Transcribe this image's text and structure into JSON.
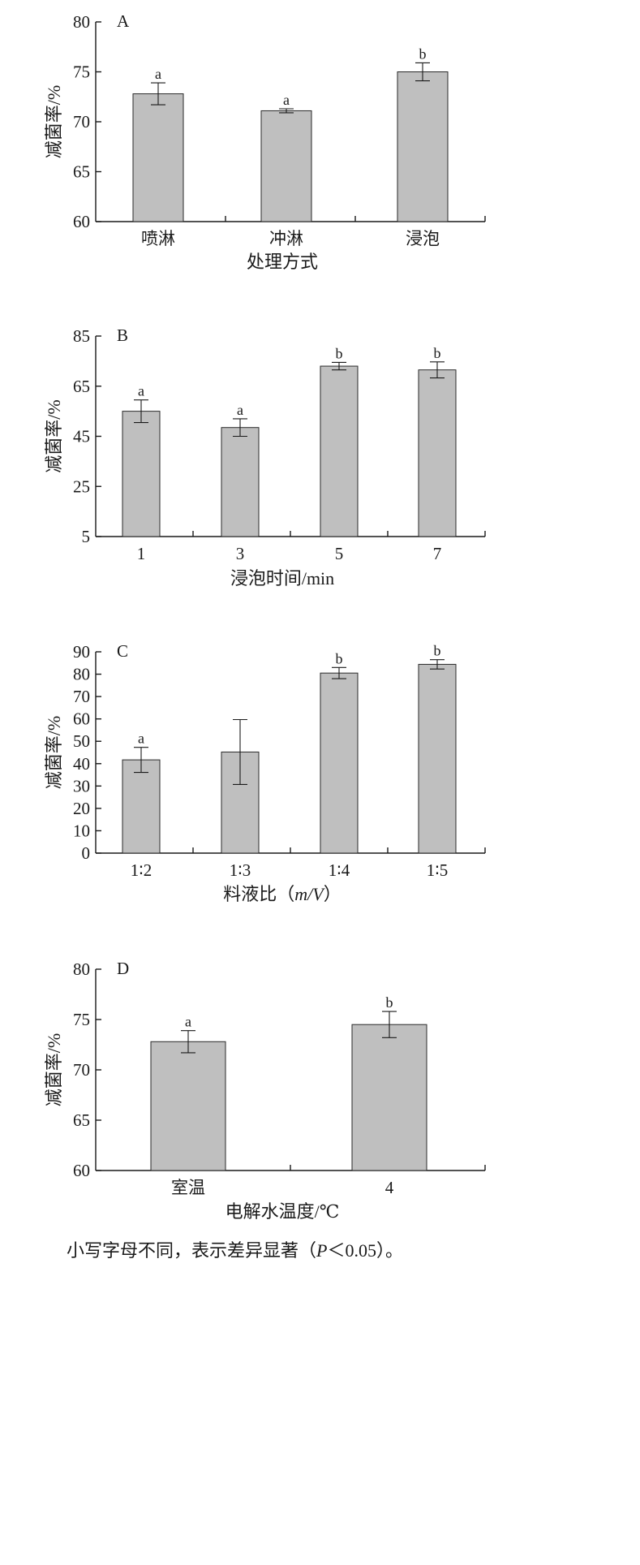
{
  "chart_data": [
    {
      "type": "bar",
      "panel": "A",
      "categories": [
        "喷淋",
        "冲淋",
        "浸泡"
      ],
      "values": [
        72.8,
        71.1,
        75.0
      ],
      "errors": [
        1.1,
        0.2,
        0.9
      ],
      "significance": [
        "a",
        "a",
        "b"
      ],
      "xlabel": "处理方式",
      "ylabel": "减菌率/%",
      "ylim": [
        60,
        80
      ],
      "yticks": [
        60,
        65,
        70,
        75,
        80
      ]
    },
    {
      "type": "bar",
      "panel": "B",
      "categories": [
        "1",
        "3",
        "5",
        "7"
      ],
      "values": [
        55,
        48.5,
        73,
        71.5
      ],
      "errors": [
        4.5,
        3.5,
        1.5,
        3.2
      ],
      "significance": [
        "a",
        "a",
        "b",
        "b"
      ],
      "xlabel": "浸泡时间/min",
      "ylabel": "减菌率/%",
      "ylim": [
        5,
        85
      ],
      "yticks": [
        5,
        25,
        45,
        65,
        85
      ]
    },
    {
      "type": "bar",
      "panel": "C",
      "categories": [
        "1∶2",
        "1∶3",
        "1∶4",
        "1∶5"
      ],
      "values": [
        41.7,
        45.2,
        80.5,
        84.4
      ],
      "errors": [
        5.6,
        14.5,
        2.5,
        2.1
      ],
      "significance": [
        "a",
        "",
        "b",
        "b"
      ],
      "xlabel": "料液比（m/V）",
      "ylabel": "减菌率/%",
      "ylim": [
        0,
        90
      ],
      "yticks": [
        0,
        10,
        20,
        30,
        40,
        50,
        60,
        70,
        80,
        90
      ]
    },
    {
      "type": "bar",
      "panel": "D",
      "categories": [
        "室温",
        "4"
      ],
      "values": [
        72.8,
        74.5
      ],
      "errors": [
        1.1,
        1.3
      ],
      "significance": [
        "a",
        "b"
      ],
      "xlabel": "电解水温度/℃",
      "ylabel": "减菌率/%",
      "ylim": [
        60,
        80
      ],
      "yticks": [
        60,
        65,
        70,
        75,
        80
      ]
    }
  ],
  "footnote": {
    "prefix": "小写字母不同，表示差异显著（",
    "p_symbol": "P",
    "suffix": "＜0.05）。"
  }
}
